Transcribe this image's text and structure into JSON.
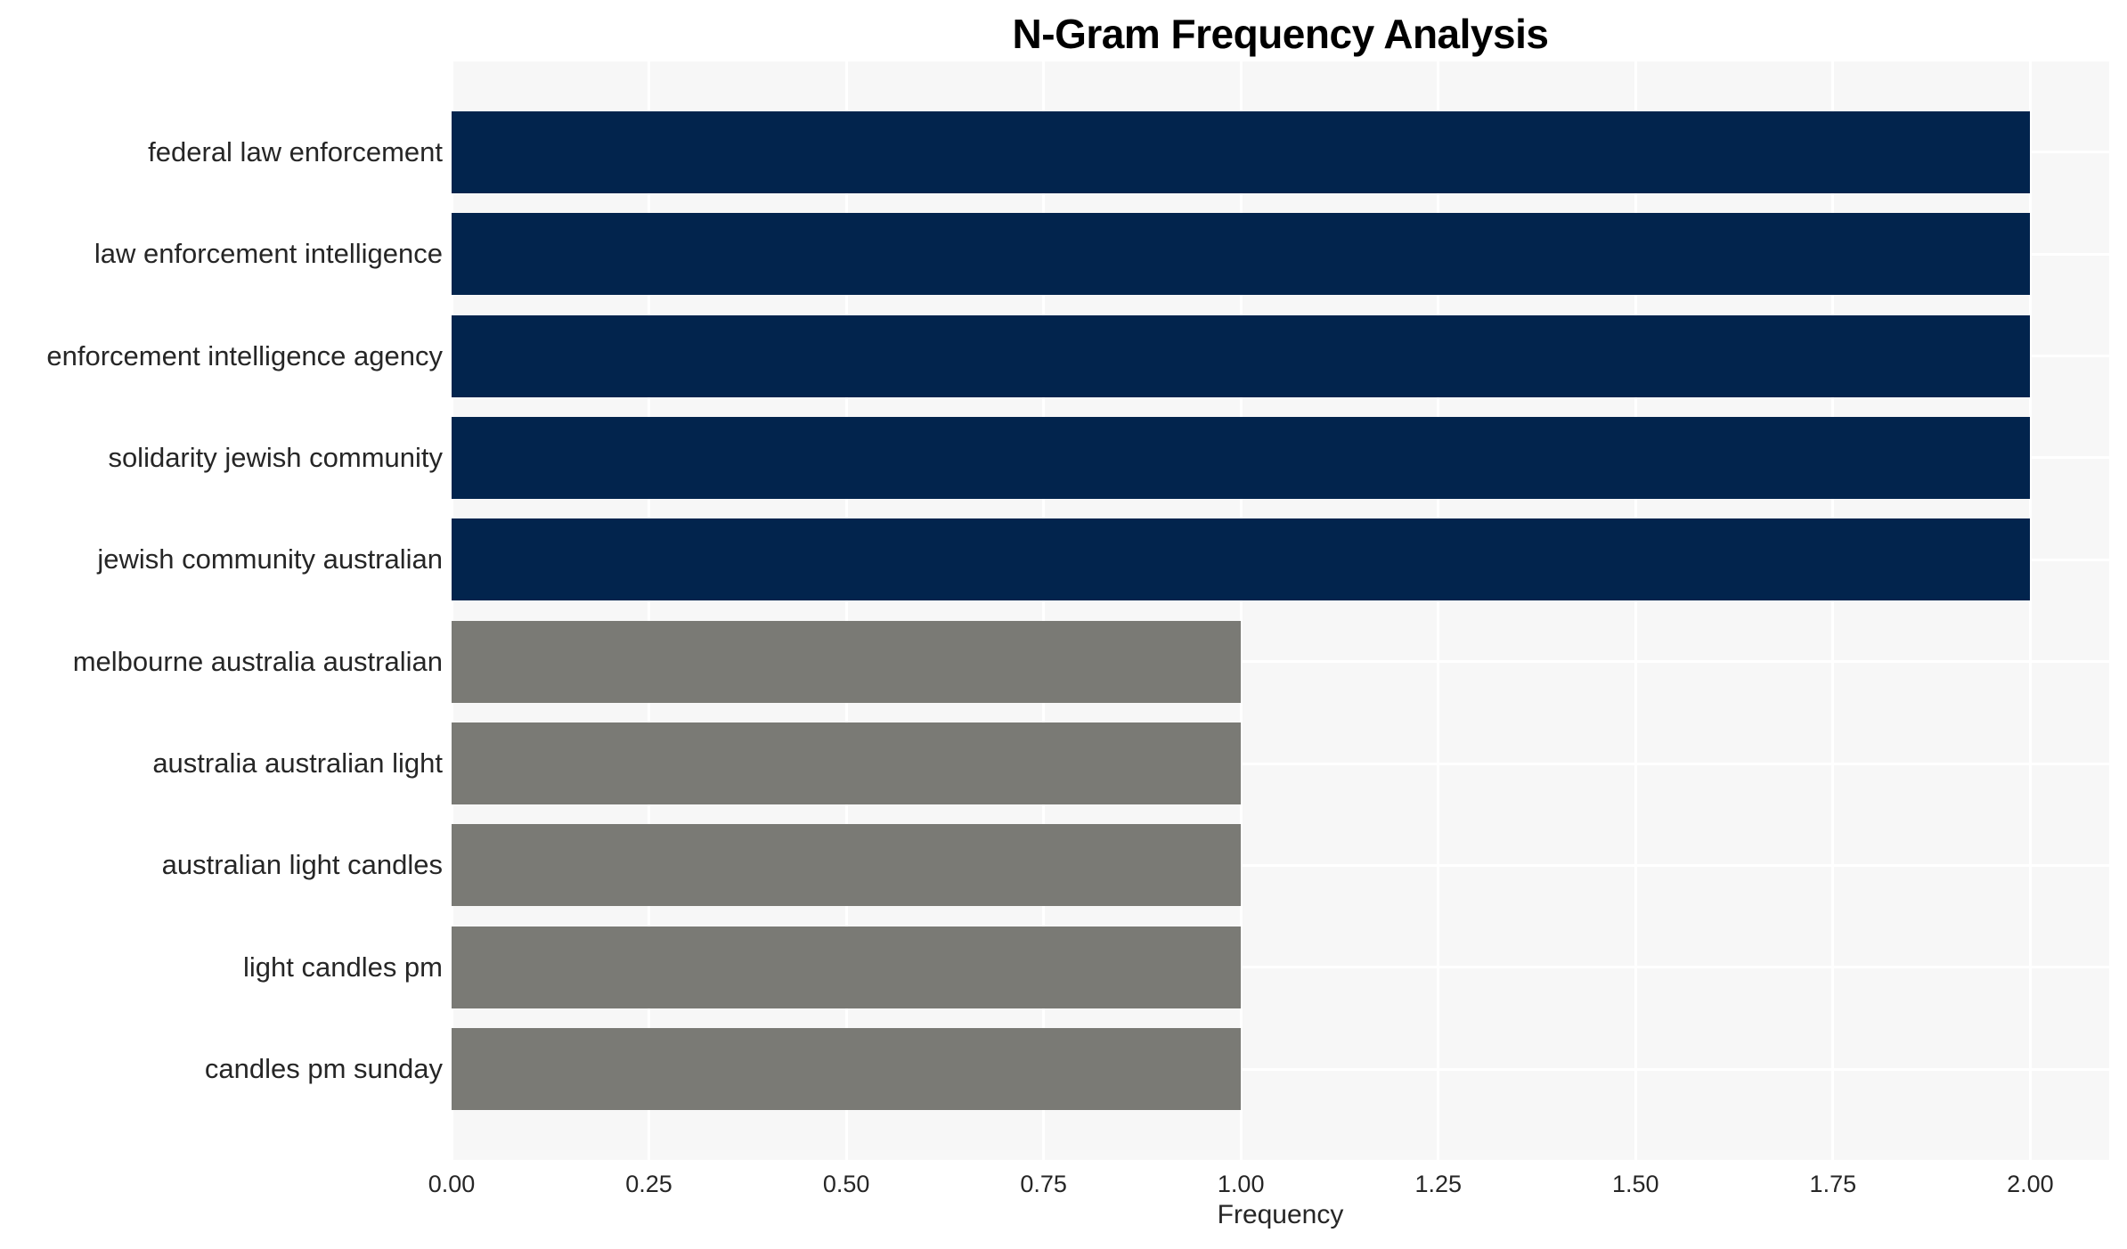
{
  "page": {
    "background": "#ffffff"
  },
  "chart_data": {
    "type": "bar",
    "orientation": "horizontal",
    "title": "N-Gram Frequency Analysis",
    "xlabel": "Frequency",
    "ylabel": "",
    "categories": [
      "federal law enforcement",
      "law enforcement intelligence",
      "enforcement intelligence agency",
      "solidarity jewish community",
      "jewish community australian",
      "melbourne australia australian",
      "australia australian light",
      "australian light candles",
      "light candles pm",
      "candles pm sunday"
    ],
    "values": [
      2,
      2,
      2,
      2,
      2,
      1,
      1,
      1,
      1,
      1
    ],
    "bar_colors": [
      "#02244d",
      "#02244d",
      "#02244d",
      "#02244d",
      "#02244d",
      "#7a7a75",
      "#7a7a75",
      "#7a7a75",
      "#7a7a75",
      "#7a7a75"
    ],
    "xlim": [
      0,
      2.1
    ],
    "xticks": [
      0,
      0.25,
      0.5,
      0.75,
      1.0,
      1.25,
      1.5,
      1.75,
      2.0
    ],
    "xtick_labels": [
      "0.00",
      "0.25",
      "0.50",
      "0.75",
      "1.00",
      "1.25",
      "1.50",
      "1.75",
      "2.00"
    ],
    "grid": true,
    "plot_background": "#f7f7f7",
    "grid_color": "#ffffff",
    "title_color": "#000000",
    "axis_text_color": "#262626"
  }
}
